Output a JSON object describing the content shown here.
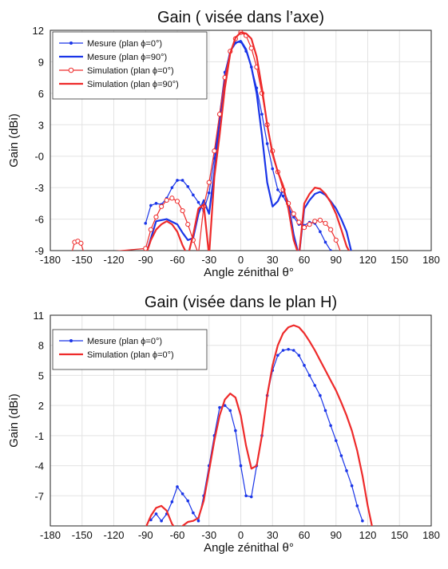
{
  "chart_data": [
    {
      "type": "line",
      "title": "Gain ( visée dans l’axe)",
      "xlabel": "Angle zénithal θ°",
      "ylabel": "Gain (dBi)",
      "xlim": [
        -180,
        180
      ],
      "ylim": [
        -9,
        12
      ],
      "xticks": [
        -180,
        -150,
        -120,
        -90,
        -60,
        -30,
        0,
        30,
        60,
        90,
        120,
        150,
        180
      ],
      "yticks": [
        -9,
        -6,
        -3,
        0,
        3,
        6,
        9,
        12
      ],
      "ytick_labels": [
        "-9",
        "-6",
        "-3",
        "-0",
        "3",
        "6",
        "9",
        "12"
      ],
      "grid": true,
      "legend_position": "top-left",
      "series": [
        {
          "name": "Mesure (plan ϕ=0°)",
          "color": "#1a35e8",
          "style": "line-dots",
          "x": [
            -90,
            -85,
            -80,
            -75,
            -70,
            -65,
            -60,
            -55,
            -50,
            -45,
            -40,
            -35,
            -30,
            -25,
            -20,
            -15,
            -10,
            -5,
            0,
            5,
            10,
            15,
            20,
            25,
            30,
            35,
            40,
            45,
            50,
            55,
            60,
            65,
            70,
            75,
            80,
            85
          ],
          "y": [
            -6.4,
            -4.7,
            -4.5,
            -4.6,
            -4.0,
            -3.0,
            -2.3,
            -2.3,
            -2.9,
            -3.7,
            -4.4,
            -5.2,
            -3.5,
            -0.2,
            4.0,
            8.0,
            10.0,
            10.8,
            10.9,
            10.0,
            8.5,
            6.5,
            4.0,
            1.2,
            -1.2,
            -3.2,
            -3.8,
            -4.8,
            -5.8,
            -6.5,
            -6.6,
            -6.3,
            -6.4,
            -7.2,
            -8.2,
            -9.0
          ]
        },
        {
          "name": "Mesure (plan ϕ=90°)",
          "color": "#1a35e8",
          "style": "line",
          "x": [
            -90,
            -80,
            -70,
            -60,
            -55,
            -50,
            -45,
            -40,
            -35,
            -30,
            -25,
            -20,
            -15,
            -10,
            -5,
            0,
            5,
            10,
            15,
            20,
            25,
            30,
            35,
            40,
            45,
            50,
            55,
            60,
            65,
            70,
            75,
            80,
            85,
            90,
            95,
            100,
            105
          ],
          "y": [
            -9.5,
            -6.2,
            -6.0,
            -6.5,
            -7.3,
            -8.0,
            -7.8,
            -5.5,
            -4.2,
            -5.5,
            -1.5,
            3.5,
            7.5,
            10.0,
            10.8,
            11.0,
            10.2,
            8.5,
            6.0,
            2.0,
            -2.5,
            -4.8,
            -4.3,
            -3.2,
            -4.5,
            -7.5,
            -9.5,
            -5.0,
            -4.2,
            -3.6,
            -3.4,
            -3.7,
            -4.3,
            -5.0,
            -6.0,
            -7.2,
            -9.3
          ]
        },
        {
          "name": "Simulation (plan ϕ=0°)",
          "color": "#ee2a2a",
          "style": "line-open-circles",
          "x": [
            -160,
            -157,
            -154,
            -151,
            -148,
            -90,
            -85,
            -80,
            -75,
            -70,
            -65,
            -60,
            -55,
            -50,
            -45,
            -40,
            -35,
            -30,
            -25,
            -20,
            -15,
            -10,
            -5,
            0,
            5,
            10,
            15,
            20,
            25,
            30,
            35,
            40,
            45,
            50,
            55,
            60,
            65,
            70,
            75,
            80,
            85,
            90,
            95
          ],
          "y": [
            -9.3,
            -8.2,
            -8.1,
            -8.3,
            -9.3,
            -8.8,
            -7.0,
            -5.8,
            -4.8,
            -4.2,
            -4.0,
            -4.3,
            -5.2,
            -6.5,
            -8.0,
            -9.3,
            -4.8,
            -2.5,
            0.5,
            4.0,
            7.5,
            10.0,
            11.2,
            11.8,
            11.5,
            10.3,
            8.5,
            6.0,
            3.0,
            0.5,
            -1.5,
            -3.2,
            -4.5,
            -5.5,
            -6.3,
            -6.8,
            -6.5,
            -6.2,
            -6.1,
            -6.4,
            -7.0,
            -8.0,
            -9.3
          ]
        },
        {
          "name": "Simulation (plan ϕ=90°)",
          "color": "#ee2a2a",
          "style": "line",
          "x": [
            -90,
            -85,
            -80,
            -75,
            -70,
            -65,
            -60,
            -55,
            -50,
            -45,
            -40,
            -35,
            -30,
            -25,
            -20,
            -15,
            -10,
            -5,
            0,
            5,
            10,
            15,
            20,
            25,
            30,
            35,
            40,
            45,
            50,
            55,
            60,
            65,
            70,
            75,
            80,
            85,
            90,
            95,
            100,
            105
          ],
          "y": [
            -9.5,
            -8.0,
            -7.0,
            -6.5,
            -6.2,
            -6.5,
            -7.2,
            -8.5,
            -9.5,
            -7.5,
            -5.0,
            -4.6,
            -9.5,
            -2.0,
            2.0,
            6.5,
            9.8,
            11.3,
            11.8,
            11.7,
            11.2,
            9.5,
            6.5,
            3.0,
            0.2,
            -1.5,
            -2.8,
            -5.0,
            -8.0,
            -9.5,
            -4.5,
            -3.6,
            -3.0,
            -3.1,
            -3.6,
            -4.4,
            -5.5,
            -7.0,
            -8.6,
            -9.5
          ]
        }
      ]
    },
    {
      "type": "line",
      "title": "Gain (visée dans le plan H)",
      "xlabel": "Angle zénithal θ°",
      "ylabel": "Gain (dBi)",
      "xlim": [
        -180,
        180
      ],
      "ylim": [
        -10,
        11
      ],
      "xticks": [
        -180,
        -150,
        -120,
        -90,
        -60,
        -30,
        0,
        30,
        60,
        90,
        120,
        150,
        180
      ],
      "yticks": [
        -7,
        -4,
        -1,
        2,
        5,
        8,
        11
      ],
      "ytick_labels": [
        "-7",
        "-4",
        "-1",
        "2",
        "5",
        "8",
        "11"
      ],
      "grid": true,
      "legend_position": "top-left",
      "series": [
        {
          "name": "Mesure (plan ϕ=0°)",
          "color": "#1a35e8",
          "style": "line-dots",
          "x": [
            -85,
            -80,
            -75,
            -70,
            -65,
            -60,
            -55,
            -50,
            -45,
            -40,
            -35,
            -30,
            -25,
            -20,
            -15,
            -10,
            -5,
            0,
            5,
            10,
            15,
            20,
            25,
            30,
            35,
            40,
            45,
            50,
            55,
            60,
            65,
            70,
            75,
            80,
            85,
            90,
            95,
            100,
            105,
            110,
            115
          ],
          "y": [
            -9.4,
            -8.8,
            -9.5,
            -8.8,
            -7.6,
            -6.1,
            -6.8,
            -7.5,
            -8.7,
            -9.5,
            -7.0,
            -4.0,
            -1.0,
            1.8,
            2.0,
            1.5,
            -0.5,
            -4.0,
            -7.0,
            -7.1,
            -4.0,
            -1.0,
            3.0,
            5.5,
            7.0,
            7.5,
            7.6,
            7.5,
            7.0,
            6.0,
            5.0,
            4.0,
            3.0,
            1.5,
            0.0,
            -1.5,
            -3.0,
            -4.5,
            -6.0,
            -8.0,
            -9.5
          ]
        },
        {
          "name": "Simulation (plan ϕ=0°)",
          "color": "#ee2a2a",
          "style": "line",
          "x": [
            -90,
            -85,
            -80,
            -75,
            -70,
            -65,
            -60,
            -55,
            -50,
            -45,
            -40,
            -35,
            -30,
            -25,
            -20,
            -15,
            -10,
            -5,
            0,
            5,
            10,
            15,
            20,
            25,
            30,
            35,
            40,
            45,
            50,
            55,
            60,
            65,
            70,
            75,
            80,
            85,
            90,
            95,
            100,
            105,
            110,
            115,
            120,
            125
          ],
          "y": [
            -10.2,
            -9.0,
            -8.2,
            -8.0,
            -8.5,
            -9.8,
            -10.5,
            -10.0,
            -9.6,
            -9.5,
            -9.2,
            -7.5,
            -4.5,
            -1.5,
            1.0,
            2.6,
            3.2,
            2.8,
            1.0,
            -2.0,
            -4.3,
            -4.0,
            -1.0,
            3.0,
            6.0,
            8.0,
            9.2,
            9.8,
            10.0,
            9.8,
            9.2,
            8.4,
            7.5,
            6.5,
            5.5,
            4.5,
            3.5,
            2.3,
            1.0,
            -0.5,
            -2.5,
            -5.0,
            -8.0,
            -10.5
          ]
        }
      ]
    }
  ]
}
